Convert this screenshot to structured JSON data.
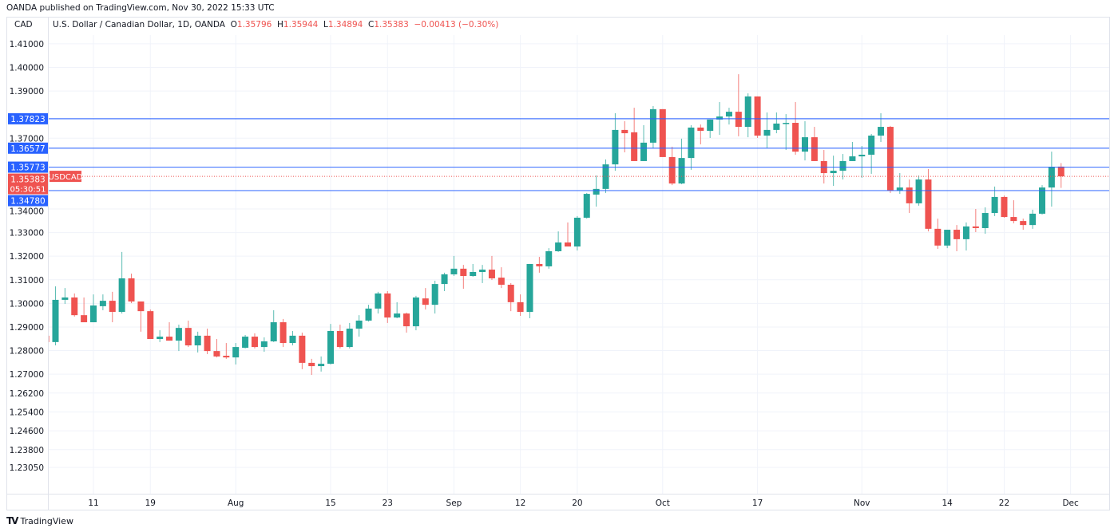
{
  "published": "OANDA published on TradingView.com, Nov 30, 2022 15:33 UTC",
  "currency": "CAD",
  "legend": {
    "title": "U.S. Dollar / Canadian Dollar, 1D, OANDA",
    "o_label": "O",
    "o": "1.35796",
    "h_label": "H",
    "h": "1.35944",
    "l_label": "L",
    "l": "1.34894",
    "c_label": "C",
    "c": "1.35383",
    "change": "−0.00413 (−0.30%)"
  },
  "footer": {
    "brand": "TradingView",
    "logo": "17"
  },
  "colors": {
    "up": "#26a69a",
    "down": "#ef5350",
    "level": "#2962ff",
    "grid": "#f0f3fa"
  },
  "chart_data": {
    "type": "candlestick",
    "symbol": "USDCAD",
    "timeframe": "1D",
    "countdown": "05:30:51",
    "current_price": 1.35383,
    "current_price_label": "1.35383",
    "y_ticks": [
      {
        "value": 1.41,
        "label": "1.41000"
      },
      {
        "value": 1.4,
        "label": "1.40000"
      },
      {
        "value": 1.39,
        "label": "1.39000"
      },
      {
        "value": 1.37,
        "label": "1.37000"
      },
      {
        "value": 1.34,
        "label": "1.34000"
      },
      {
        "value": 1.33,
        "label": "1.33000"
      },
      {
        "value": 1.32,
        "label": "1.32000"
      },
      {
        "value": 1.31,
        "label": "1.31000"
      },
      {
        "value": 1.3,
        "label": "1.30000"
      },
      {
        "value": 1.29,
        "label": "1.29000"
      },
      {
        "value": 1.28,
        "label": "1.28000"
      },
      {
        "value": 1.27,
        "label": "1.27000"
      },
      {
        "value": 1.262,
        "label": "1.26200"
      },
      {
        "value": 1.254,
        "label": "1.25400"
      },
      {
        "value": 1.246,
        "label": "1.24600"
      },
      {
        "value": 1.238,
        "label": "1.23800"
      },
      {
        "value": 1.2305,
        "label": "1.23050"
      }
    ],
    "x_ticks": [
      {
        "index": 5,
        "label": "11"
      },
      {
        "index": 11,
        "label": "19"
      },
      {
        "index": 20,
        "label": "Aug"
      },
      {
        "index": 30,
        "label": "15"
      },
      {
        "index": 36,
        "label": "23"
      },
      {
        "index": 43,
        "label": "Sep"
      },
      {
        "index": 50,
        "label": "12"
      },
      {
        "index": 56,
        "label": "20"
      },
      {
        "index": 65,
        "label": "Oct"
      },
      {
        "index": 75,
        "label": "17"
      },
      {
        "index": 86,
        "label": "Nov"
      },
      {
        "index": 95,
        "label": "14"
      },
      {
        "index": 101,
        "label": "22"
      },
      {
        "index": 108,
        "label": "Dec"
      }
    ],
    "levels": [
      {
        "value": 1.37823,
        "label": "1.37823"
      },
      {
        "value": 1.36577,
        "label": "1.36577"
      },
      {
        "value": 1.35773,
        "label": "1.35773"
      },
      {
        "value": 1.3478,
        "label": "1.34780"
      }
    ],
    "ohlc": [
      [
        1.2863,
        1.2863,
        1.2836,
        1.2836
      ],
      [
        1.2836,
        1.3072,
        1.2822,
        1.3015
      ],
      [
        1.3015,
        1.3065,
        1.2998,
        1.3025
      ],
      [
        1.3025,
        1.3042,
        1.2944,
        1.295
      ],
      [
        1.295,
        1.3025,
        1.292,
        1.292
      ],
      [
        1.292,
        1.3038,
        1.292,
        1.2991
      ],
      [
        1.2988,
        1.3038,
        1.2971,
        1.3011
      ],
      [
        1.3011,
        1.3049,
        1.292,
        1.2964
      ],
      [
        1.2964,
        1.3218,
        1.2957,
        1.3106
      ],
      [
        1.3106,
        1.3126,
        1.3001,
        1.3008
      ],
      [
        1.3008,
        1.3008,
        1.288,
        1.2967
      ],
      [
        1.2967,
        1.2974,
        1.2849,
        1.2849
      ],
      [
        1.2849,
        1.2886,
        1.2836,
        1.2859
      ],
      [
        1.2859,
        1.292,
        1.2842,
        1.2842
      ],
      [
        1.2842,
        1.291,
        1.2798,
        1.2896
      ],
      [
        1.2896,
        1.2927,
        1.2815,
        1.2822
      ],
      [
        1.2822,
        1.288,
        1.2792,
        1.2863
      ],
      [
        1.2863,
        1.2893,
        1.2785,
        1.2798
      ],
      [
        1.2798,
        1.2849,
        1.2771,
        1.2775
      ],
      [
        1.2778,
        1.2832,
        1.2765,
        1.2771
      ],
      [
        1.2771,
        1.2832,
        1.2741,
        1.2815
      ],
      [
        1.2812,
        1.2866,
        1.2809,
        1.2859
      ],
      [
        1.2859,
        1.2873,
        1.2809,
        1.2815
      ],
      [
        1.2815,
        1.2856,
        1.2795,
        1.2839
      ],
      [
        1.2839,
        1.2971,
        1.2836,
        1.292
      ],
      [
        1.292,
        1.2934,
        1.2815,
        1.2832
      ],
      [
        1.2832,
        1.2883,
        1.2822,
        1.2863
      ],
      [
        1.2863,
        1.2876,
        1.2721,
        1.2748
      ],
      [
        1.2748,
        1.2765,
        1.2697,
        1.2734
      ],
      [
        1.2734,
        1.2775,
        1.2711,
        1.2744
      ],
      [
        1.2744,
        1.2913,
        1.2741,
        1.2883
      ],
      [
        1.2883,
        1.291,
        1.2809,
        1.2815
      ],
      [
        1.2815,
        1.2917,
        1.2809,
        1.2893
      ],
      [
        1.2893,
        1.295,
        1.2859,
        1.2927
      ],
      [
        1.2927,
        1.2994,
        1.2923,
        1.2978
      ],
      [
        1.2978,
        1.3049,
        1.2957,
        1.3042
      ],
      [
        1.3042,
        1.3052,
        1.2917,
        1.294
      ],
      [
        1.294,
        1.3005,
        1.2937,
        1.2957
      ],
      [
        1.2957,
        1.2961,
        1.2876,
        1.2903
      ],
      [
        1.2903,
        1.3032,
        1.2886,
        1.3025
      ],
      [
        1.3021,
        1.3065,
        1.2974,
        1.2994
      ],
      [
        1.2994,
        1.3096,
        1.2957,
        1.3082
      ],
      [
        1.3082,
        1.313,
        1.3052,
        1.3123
      ],
      [
        1.3123,
        1.3201,
        1.3116,
        1.3147
      ],
      [
        1.3147,
        1.3163,
        1.3062,
        1.3116
      ],
      [
        1.3116,
        1.3167,
        1.3113,
        1.3133
      ],
      [
        1.3133,
        1.3163,
        1.3086,
        1.3143
      ],
      [
        1.3143,
        1.3201,
        1.3099,
        1.3106
      ],
      [
        1.3109,
        1.3153,
        1.3065,
        1.3079
      ],
      [
        1.3079,
        1.3086,
        1.2967,
        1.3005
      ],
      [
        1.3005,
        1.3038,
        1.2947,
        1.2964
      ],
      [
        1.2964,
        1.3167,
        1.2937,
        1.3167
      ],
      [
        1.3167,
        1.3197,
        1.313,
        1.3157
      ],
      [
        1.3157,
        1.3234,
        1.3147,
        1.3221
      ],
      [
        1.3221,
        1.3305,
        1.3218,
        1.3258
      ],
      [
        1.3258,
        1.3343,
        1.3241,
        1.3241
      ],
      [
        1.3241,
        1.337,
        1.3224,
        1.3363
      ],
      [
        1.3363,
        1.3468,
        1.3359,
        1.3464
      ],
      [
        1.3461,
        1.3542,
        1.341,
        1.3485
      ],
      [
        1.3485,
        1.361,
        1.3468,
        1.3589
      ],
      [
        1.3589,
        1.3806,
        1.3562,
        1.3735
      ],
      [
        1.3735,
        1.3772,
        1.364,
        1.3721
      ],
      [
        1.3725,
        1.3829,
        1.3603,
        1.3603
      ],
      [
        1.3603,
        1.3755,
        1.3603,
        1.3681
      ],
      [
        1.3681,
        1.3836,
        1.3657,
        1.3823
      ],
      [
        1.3823,
        1.3823,
        1.362,
        1.362
      ],
      [
        1.362,
        1.3664,
        1.3501,
        1.3508
      ],
      [
        1.3508,
        1.3698,
        1.3505,
        1.3616
      ],
      [
        1.3616,
        1.3755,
        1.3566,
        1.3745
      ],
      [
        1.3745,
        1.3758,
        1.3674,
        1.3731
      ],
      [
        1.3731,
        1.3779,
        1.3701,
        1.3779
      ],
      [
        1.3779,
        1.3853,
        1.3714,
        1.3792
      ],
      [
        1.3792,
        1.3829,
        1.3758,
        1.3812
      ],
      [
        1.3812,
        1.3971,
        1.3708,
        1.3748
      ],
      [
        1.3748,
        1.389,
        1.3704,
        1.3877
      ],
      [
        1.3877,
        1.3877,
        1.3701,
        1.3711
      ],
      [
        1.3711,
        1.3809,
        1.3657,
        1.3735
      ],
      [
        1.3735,
        1.3809,
        1.3721,
        1.3762
      ],
      [
        1.3762,
        1.3802,
        1.365,
        1.3765
      ],
      [
        1.3765,
        1.3853,
        1.363,
        1.3643
      ],
      [
        1.3643,
        1.3772,
        1.3606,
        1.3704
      ],
      [
        1.3704,
        1.3748,
        1.3603,
        1.3603
      ],
      [
        1.3603,
        1.365,
        1.3508,
        1.3552
      ],
      [
        1.3552,
        1.3626,
        1.3498,
        1.3562
      ],
      [
        1.3562,
        1.3633,
        1.3525,
        1.3603
      ],
      [
        1.3603,
        1.3684,
        1.3603,
        1.3623
      ],
      [
        1.3623,
        1.3667,
        1.3532,
        1.363
      ],
      [
        1.363,
        1.3718,
        1.3549,
        1.3711
      ],
      [
        1.3711,
        1.3806,
        1.3684,
        1.3748
      ],
      [
        1.3748,
        1.3752,
        1.3468,
        1.3478
      ],
      [
        1.3478,
        1.3552,
        1.3464,
        1.3491
      ],
      [
        1.3491,
        1.3525,
        1.3383,
        1.3424
      ],
      [
        1.3424,
        1.3542,
        1.3414,
        1.3525
      ],
      [
        1.3525,
        1.3569,
        1.3305,
        1.3316
      ],
      [
        1.3316,
        1.3359,
        1.3231,
        1.3245
      ],
      [
        1.3245,
        1.3312,
        1.3234,
        1.3312
      ],
      [
        1.3312,
        1.3332,
        1.3221,
        1.3272
      ],
      [
        1.3272,
        1.3343,
        1.3224,
        1.3326
      ],
      [
        1.3326,
        1.34,
        1.3302,
        1.3319
      ],
      [
        1.3319,
        1.3407,
        1.3295,
        1.3383
      ],
      [
        1.3383,
        1.3495,
        1.337,
        1.3451
      ],
      [
        1.3451,
        1.3457,
        1.3363,
        1.3366
      ],
      [
        1.3366,
        1.3437,
        1.3339,
        1.3349
      ],
      [
        1.3349,
        1.3359,
        1.3312,
        1.3332
      ],
      [
        1.3332,
        1.3397,
        1.3316,
        1.338
      ],
      [
        1.338,
        1.3501,
        1.3376,
        1.3491
      ],
      [
        1.3491,
        1.3643,
        1.341,
        1.3579
      ],
      [
        1.35796,
        1.35944,
        1.34894,
        1.35383
      ]
    ]
  }
}
